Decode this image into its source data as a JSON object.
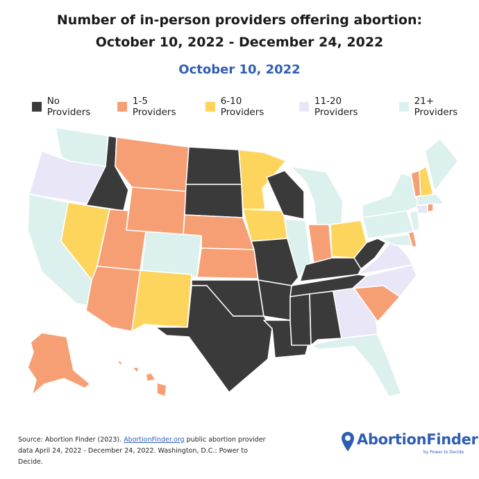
{
  "title_line1": "Number of in-person providers offering abortion:",
  "title_line2": "October 10, 2022 - December 24, 2022",
  "date_label": "October 10, 2022",
  "legend": [
    {
      "label": "No Providers",
      "color": "#3a3a3a"
    },
    {
      "label": "1-5 Providers",
      "color": "#f79f74"
    },
    {
      "label": "6-10 Providers",
      "color": "#fdd55c"
    },
    {
      "label": "11-20 Providers",
      "color": "#e8e6f7"
    },
    {
      "label": "21+ Providers",
      "color": "#dcf1ed"
    }
  ],
  "state_categories": {
    "No Providers": [
      "ID",
      "ND",
      "SD",
      "WI",
      "MO",
      "OK",
      "TX",
      "AR",
      "LA",
      "MS",
      "AL",
      "TN",
      "KY",
      "WV"
    ],
    "1-5 Providers": [
      "MT",
      "WY",
      "UT",
      "AZ",
      "NE",
      "KS",
      "IN",
      "SC",
      "AK",
      "HI",
      "VT",
      "DE",
      "RI"
    ],
    "6-10 Providers": [
      "NV",
      "NM",
      "MN",
      "IA",
      "OH",
      "NH"
    ],
    "11-20 Providers": [
      "OR",
      "VA",
      "NC",
      "GA",
      "CT"
    ],
    "21+ Providers": [
      "WA",
      "CA",
      "CO",
      "IL",
      "MI",
      "PA",
      "NY",
      "NJ",
      "MD",
      "ME",
      "MA",
      "FL"
    ]
  },
  "source": {
    "prefix": "Source: Abortion Finder (2023). ",
    "link": "AbortionFinder.org",
    "suffix": " public abortion provider data April 24, 2022 - December 24, 2022. Washington, D.C.: Power to Decide."
  },
  "logo": {
    "name": "AbortionFinder",
    "tagline": "by Power to Decide",
    "color": "#2f5db2"
  }
}
